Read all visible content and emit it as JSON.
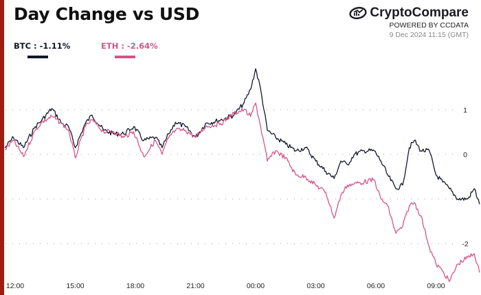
{
  "chart_data": {
    "type": "line",
    "title": "Day Change vs USD",
    "xlabel": "",
    "ylabel": "",
    "ylim": [
      -3.1,
      2.0
    ],
    "grid": true,
    "legend_placement": "top-left",
    "x_ticks": [
      "12:00",
      "15:00",
      "18:00",
      "21:00",
      "00:00",
      "03:00",
      "06:00",
      "09:00"
    ],
    "y_ticks": [
      1,
      0,
      -1,
      -2
    ],
    "y_tick_labels": [
      "1",
      "0",
      "",
      "-2"
    ],
    "x": [
      "2024-12-08 11:30",
      "2024-12-08 11:55",
      "2024-12-08 12:25",
      "2024-12-08 13:00",
      "2024-12-08 13:20",
      "2024-12-08 13:50",
      "2024-12-08 14:20",
      "2024-12-08 14:40",
      "2024-12-08 15:00",
      "2024-12-08 15:30",
      "2024-12-08 15:50",
      "2024-12-08 16:25",
      "2024-12-08 16:55",
      "2024-12-08 17:25",
      "2024-12-08 17:55",
      "2024-12-08 18:25",
      "2024-12-08 19:00",
      "2024-12-08 19:20",
      "2024-12-08 19:40",
      "2024-12-08 20:00",
      "2024-12-08 20:30",
      "2024-12-08 21:00",
      "2024-12-08 21:30",
      "2024-12-08 22:15",
      "2024-12-08 22:55",
      "2024-12-08 23:25",
      "2024-12-08 23:45",
      "2024-12-09 00:00",
      "2024-12-09 00:15",
      "2024-12-09 00:35",
      "2024-12-09 01:00",
      "2024-12-09 01:30",
      "2024-12-09 02:00",
      "2024-12-09 02:30",
      "2024-12-09 03:00",
      "2024-12-09 03:30",
      "2024-12-09 03:55",
      "2024-12-09 04:15",
      "2024-12-09 04:35",
      "2024-12-09 04:55",
      "2024-12-09 05:25",
      "2024-12-09 05:55",
      "2024-12-09 06:15",
      "2024-12-09 06:35",
      "2024-12-09 07:00",
      "2024-12-09 07:20",
      "2024-12-09 07:40",
      "2024-12-09 07:55",
      "2024-12-09 08:15",
      "2024-12-09 08:40",
      "2024-12-09 09:00",
      "2024-12-09 09:20",
      "2024-12-09 09:40",
      "2024-12-09 10:05",
      "2024-12-09 10:35",
      "2024-12-09 10:55",
      "2024-12-09 11:10"
    ],
    "series": [
      {
        "name": "BTC",
        "label": "BTC : -1.11%",
        "color": "#111827",
        "values": [
          0.15,
          0.38,
          0.15,
          0.62,
          0.77,
          1.03,
          0.69,
          0.62,
          0.15,
          0.69,
          0.88,
          0.54,
          0.46,
          0.46,
          0.62,
          0.31,
          0.38,
          0.15,
          0.46,
          0.72,
          0.62,
          0.38,
          0.69,
          0.77,
          0.88,
          1.15,
          1.46,
          1.92,
          1.46,
          0.54,
          0.38,
          0.23,
          0.08,
          0.15,
          -0.15,
          -0.38,
          -0.54,
          -0.15,
          -0.23,
          0,
          0.08,
          0.08,
          -0.15,
          -0.46,
          -0.77,
          -0.69,
          0.15,
          0.31,
          0.08,
          0.08,
          -0.46,
          -0.62,
          -0.77,
          -1.0,
          -1.0,
          -0.77,
          -1.11
        ]
      },
      {
        "name": "ETH",
        "label": "ETH : -2.64%",
        "color": "#d6548a",
        "values": [
          0.11,
          0.31,
          -0.05,
          0.54,
          0.72,
          0.85,
          0.69,
          0.54,
          -0.08,
          0.62,
          0.77,
          0.51,
          0.51,
          0.38,
          0.51,
          -0.05,
          0.31,
          0,
          0.38,
          0.54,
          0.54,
          0.38,
          0.62,
          0.69,
          0.92,
          1.0,
          0.85,
          1.15,
          0.62,
          -0.15,
          0.08,
          -0.08,
          -0.46,
          -0.51,
          -0.69,
          -0.85,
          -1.43,
          -0.92,
          -0.69,
          -0.66,
          -0.62,
          -0.57,
          -1.0,
          -1.15,
          -1.77,
          -1.62,
          -1.15,
          -1.08,
          -1.38,
          -2.08,
          -2.46,
          -2.62,
          -2.85,
          -2.46,
          -2.31,
          -2.23,
          -2.64
        ]
      }
    ]
  },
  "brand": {
    "name": "CryptoCompare",
    "powered_by": "POWERED BY CCDATA",
    "timestamp": "9 Dec 2024 11:15 (GMT)"
  },
  "colors": {
    "accent_bar": "#a01b10",
    "btc": "#111827",
    "eth": "#d6548a"
  }
}
